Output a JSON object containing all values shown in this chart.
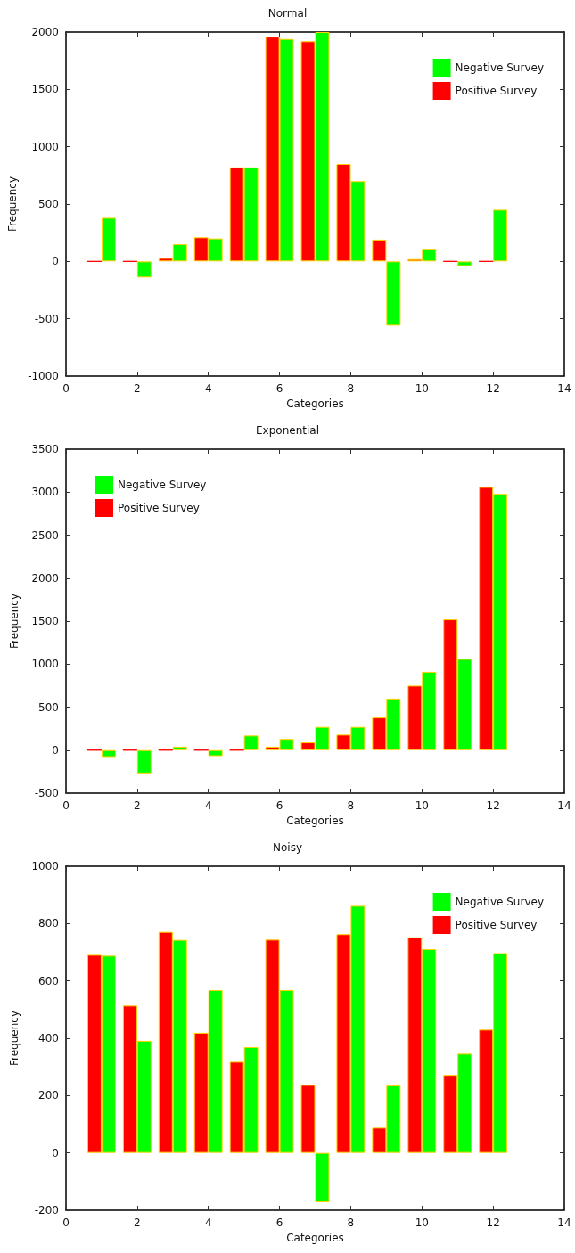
{
  "chart_data": [
    {
      "type": "bar",
      "title": "Normal",
      "xlabel": "Categories",
      "ylabel": "Frequency",
      "xlim": [
        0,
        14
      ],
      "xticks": [
        0,
        2,
        4,
        6,
        8,
        10,
        12,
        14
      ],
      "ylim": [
        -1000,
        2000
      ],
      "yticks": [
        -1000,
        -500,
        0,
        500,
        1000,
        1500,
        2000
      ],
      "legend": "top right",
      "grid": false,
      "series": [
        {
          "name": "Positive Survey",
          "color": "#ff0000",
          "x": [
            0.8,
            1.8,
            2.8,
            3.8,
            4.8,
            5.8,
            6.8,
            7.8,
            8.8,
            9.8,
            10.8,
            11.8
          ],
          "values": [
            0,
            0,
            30,
            210,
            820,
            1960,
            1920,
            850,
            190,
            20,
            0,
            0
          ]
        },
        {
          "name": "Negative Survey",
          "color": "#00ff00",
          "x": [
            1.2,
            2.2,
            3.2,
            4.2,
            5.2,
            6.2,
            7.2,
            8.2,
            9.2,
            10.2,
            11.2,
            12.2
          ],
          "values": [
            380,
            -140,
            150,
            200,
            820,
            1940,
            2000,
            700,
            -560,
            110,
            -40,
            450
          ]
        }
      ]
    },
    {
      "type": "bar",
      "title": "Exponential",
      "xlabel": "Categories",
      "ylabel": "Frequency",
      "xlim": [
        0,
        14
      ],
      "xticks": [
        0,
        2,
        4,
        6,
        8,
        10,
        12,
        14
      ],
      "ylim": [
        -500,
        3500
      ],
      "yticks": [
        -500,
        0,
        500,
        1000,
        1500,
        2000,
        2500,
        3000,
        3500
      ],
      "legend": "top left",
      "grid": false,
      "series": [
        {
          "name": "Positive Survey",
          "color": "#ff0000",
          "x": [
            0.8,
            1.8,
            2.8,
            3.8,
            4.8,
            5.8,
            6.8,
            7.8,
            8.8,
            9.8,
            10.8,
            11.8
          ],
          "values": [
            0,
            0,
            0,
            0,
            0,
            40,
            90,
            180,
            380,
            750,
            1520,
            3060
          ]
        },
        {
          "name": "Negative Survey",
          "color": "#00ff00",
          "x": [
            1.2,
            2.2,
            3.2,
            4.2,
            5.2,
            6.2,
            7.2,
            8.2,
            9.2,
            10.2,
            11.2,
            12.2
          ],
          "values": [
            -80,
            -270,
            40,
            -70,
            170,
            130,
            270,
            270,
            600,
            910,
            1060,
            2980
          ]
        }
      ]
    },
    {
      "type": "bar",
      "title": "Noisy",
      "xlabel": "Categories",
      "ylabel": "Frequency",
      "xlim": [
        0,
        14
      ],
      "xticks": [
        0,
        2,
        4,
        6,
        8,
        10,
        12,
        14
      ],
      "ylim": [
        -200,
        1000
      ],
      "yticks": [
        -200,
        0,
        200,
        400,
        600,
        800,
        1000
      ],
      "legend": "top right",
      "grid": false,
      "series": [
        {
          "name": "Positive Survey",
          "color": "#ff0000",
          "x": [
            0.8,
            1.8,
            2.8,
            3.8,
            4.8,
            5.8,
            6.8,
            7.8,
            8.8,
            9.8,
            10.8,
            11.8
          ],
          "values": [
            691,
            514,
            771,
            419,
            318,
            744,
            237,
            763,
            88,
            752,
            272,
            430
          ]
        },
        {
          "name": "Negative Survey",
          "color": "#00ff00",
          "x": [
            1.2,
            2.2,
            3.2,
            4.2,
            5.2,
            6.2,
            7.2,
            8.2,
            9.2,
            10.2,
            11.2,
            12.2
          ],
          "values": [
            688,
            391,
            743,
            568,
            369,
            568,
            -172,
            862,
            235,
            711,
            346,
            697
          ]
        }
      ]
    }
  ]
}
